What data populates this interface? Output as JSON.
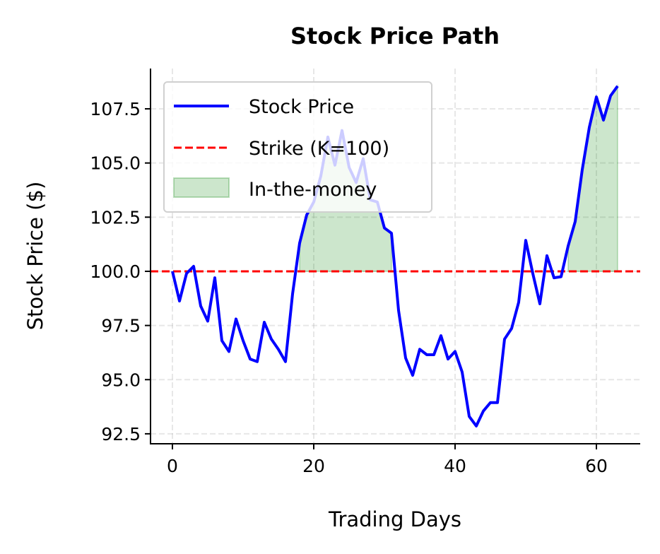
{
  "chart_data": {
    "type": "line",
    "title": "Stock Price Path",
    "xlabel": "Trading Days",
    "ylabel": "Stock Price ($)",
    "xlim": [
      -3.1,
      66.2
    ],
    "ylim": [
      92.04,
      109.36
    ],
    "xticks": [
      0,
      20,
      40,
      60
    ],
    "yticks": [
      92.5,
      95.0,
      97.5,
      100.0,
      102.5,
      105.0,
      107.5
    ],
    "grid": true,
    "legend_placement": "upper-left",
    "strike": 100,
    "series": [
      {
        "name": "Stock Price",
        "color": "#0000ff",
        "x": [
          0,
          1,
          2,
          3,
          4,
          5,
          6,
          7,
          8,
          9,
          10,
          11,
          12,
          13,
          14,
          15,
          16,
          17,
          18,
          19,
          20,
          21,
          22,
          23,
          24,
          25,
          26,
          27,
          28,
          29,
          30,
          31,
          32,
          33,
          34,
          35,
          36,
          37,
          38,
          39,
          40,
          41,
          42,
          43,
          44,
          45,
          46,
          47,
          48,
          49,
          50,
          51,
          52,
          53,
          54,
          55,
          56,
          57,
          58,
          59,
          60,
          61,
          62,
          63
        ],
        "y": [
          100.0,
          98.63,
          99.9,
          100.23,
          98.4,
          97.7,
          99.7,
          96.8,
          96.3,
          97.8,
          96.8,
          95.95,
          95.83,
          97.65,
          96.87,
          96.4,
          95.83,
          98.95,
          101.3,
          102.6,
          103.2,
          104.4,
          106.2,
          104.9,
          106.5,
          104.8,
          104.1,
          105.2,
          103.3,
          103.2,
          102.0,
          101.76,
          98.2,
          96.0,
          95.2,
          96.4,
          96.15,
          96.15,
          97.03,
          95.95,
          96.3,
          95.35,
          93.3,
          92.86,
          93.55,
          93.94,
          93.94,
          96.87,
          97.36,
          98.57,
          101.43,
          99.9,
          98.5,
          100.72,
          99.7,
          99.75,
          101.17,
          102.3,
          104.7,
          106.65,
          108.05,
          106.98,
          108.1,
          108.55
        ]
      }
    ],
    "legend": [
      {
        "label": "Stock Price",
        "style": "solid",
        "color": "#0000ff"
      },
      {
        "label": "Strike (K=100)",
        "style": "dashed",
        "color": "#ff0000"
      },
      {
        "label": "In-the-money",
        "style": "fill",
        "color": "#008000"
      }
    ]
  }
}
